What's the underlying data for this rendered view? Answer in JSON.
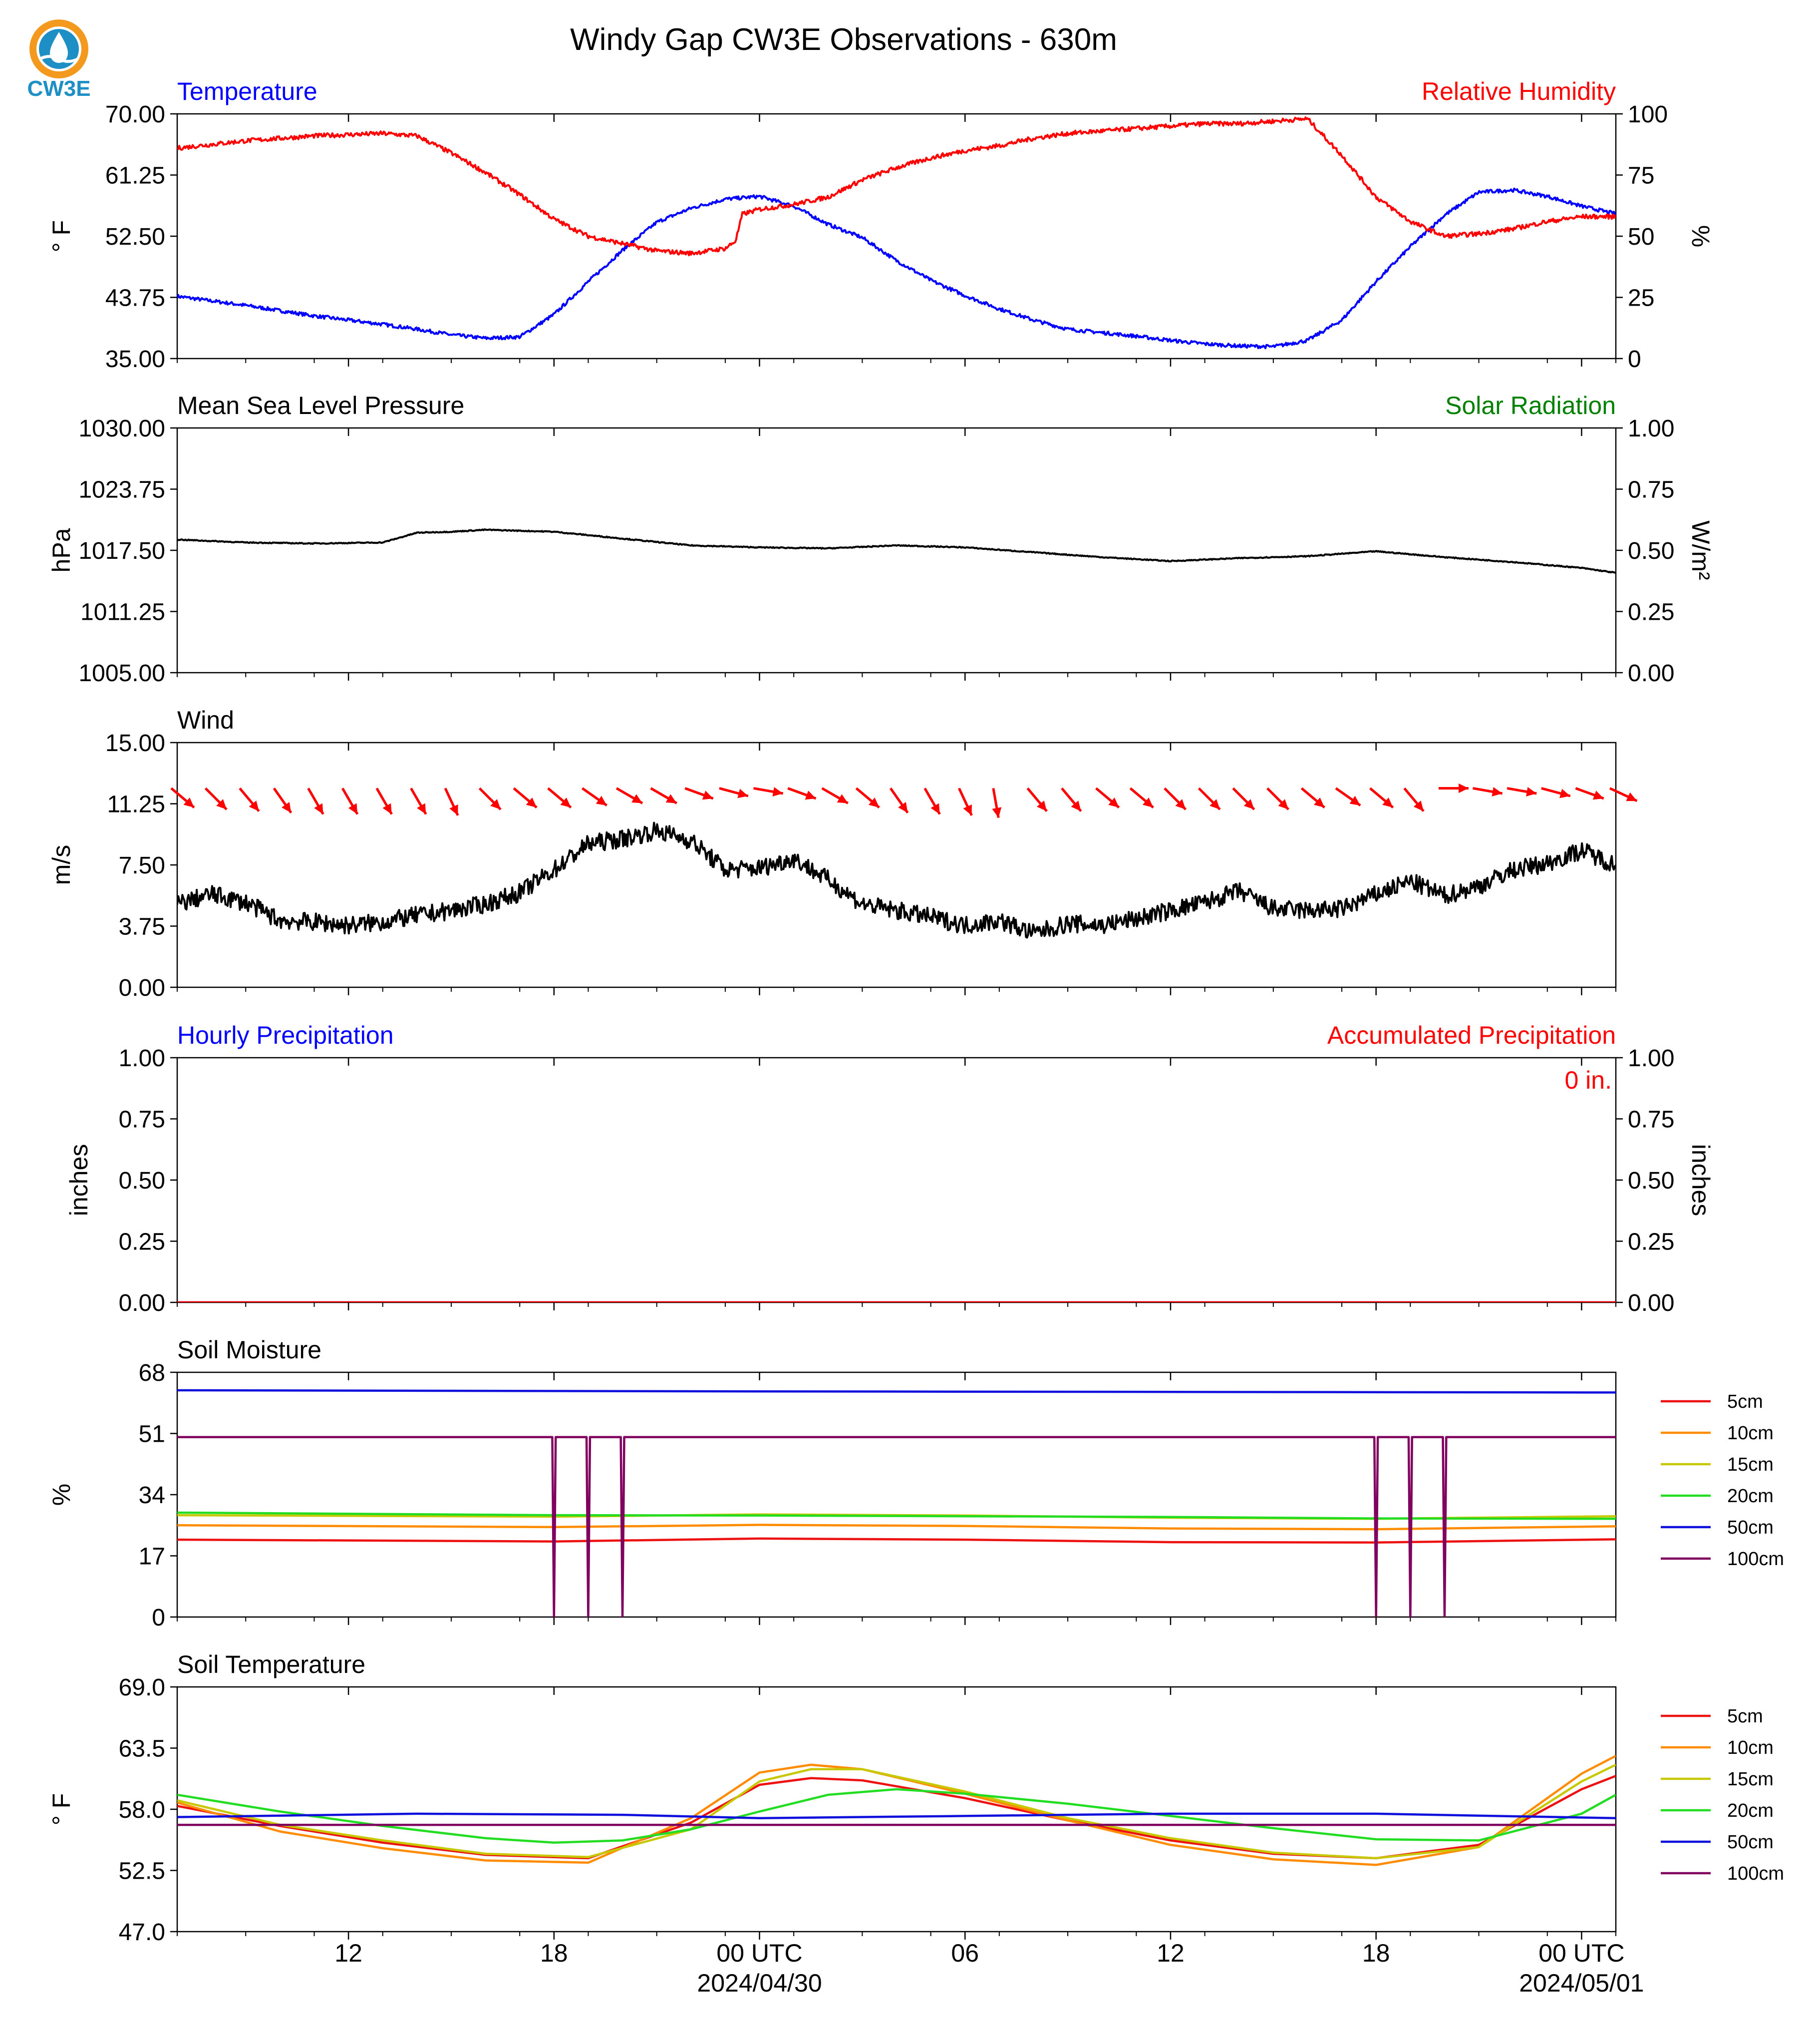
{
  "title": "Windy Gap CW3E Observations - 630m",
  "logo_text": "CW3E",
  "colors": {
    "red": "#ff0000",
    "blue": "#0000ff",
    "green": "#008000",
    "black": "#000000",
    "sm5": "#ee1111",
    "sm10": "#ff8c00",
    "sm15": "#c8c800",
    "sm20": "#22dd22",
    "sm50": "#1010dd",
    "sm100": "#800060"
  },
  "x_axis": {
    "range_hours": [
      -17.0,
      25.0
    ],
    "ticks": [
      {
        "h": -12,
        "label": "12"
      },
      {
        "h": -6,
        "label": "18"
      },
      {
        "h": 0,
        "label": "00 UTC",
        "date": "2024/04/30"
      },
      {
        "h": 6,
        "label": "06"
      },
      {
        "h": 12,
        "label": "12"
      },
      {
        "h": 18,
        "label": "18"
      },
      {
        "h": 24,
        "label": "00 UTC",
        "date": "2024/05/01"
      }
    ],
    "minor_every_hours": 2
  },
  "chart_data": [
    {
      "id": "temperature",
      "type": "line",
      "title_left": "Temperature",
      "title_right": "Relative Humidity",
      "ylabel": "° F",
      "ylabel_right": "%",
      "ylim": [
        35,
        70
      ],
      "yticks": [
        "70.00",
        "61.25",
        "52.50",
        "43.75",
        "35.00"
      ],
      "ylim_right": [
        0,
        100
      ],
      "yticks_right": [
        "100",
        "75",
        "50",
        "25",
        "0"
      ],
      "series": [
        {
          "name": "Temperature",
          "color": "#0000ff",
          "axis": "left",
          "x": [
            -17,
            -15,
            -13,
            -11,
            -10,
            -9,
            -8,
            -7,
            -6,
            -5,
            -4,
            -3,
            -2,
            -1,
            0,
            1,
            2,
            3,
            4,
            5,
            6,
            7,
            8,
            9,
            10,
            11,
            12,
            13,
            14,
            15,
            16,
            17,
            18,
            19,
            20,
            21,
            22,
            23,
            24,
            25
          ],
          "y": [
            43.9,
            42.6,
            41.1,
            39.9,
            39.2,
            38.4,
            37.9,
            38.1,
            41.3,
            46.0,
            50.5,
            54.5,
            56.5,
            57.8,
            58.2,
            56.8,
            54.2,
            52.3,
            49.0,
            46.2,
            44.0,
            42.1,
            40.5,
            39.2,
            38.7,
            38.2,
            37.6,
            37.1,
            36.8,
            36.7,
            37.6,
            40.5,
            46.0,
            51.0,
            55.5,
            58.8,
            59.1,
            58.2,
            56.8,
            55.7
          ]
        },
        {
          "name": "Relative Humidity",
          "color": "#ff0000",
          "axis": "right",
          "x": [
            -17,
            -15,
            -13,
            -11,
            -10,
            -9,
            -8,
            -7,
            -6,
            -5,
            -4,
            -3,
            -2,
            -1,
            -0.7,
            -0.5,
            0,
            1,
            2,
            3,
            4,
            5,
            6,
            7,
            8,
            9,
            10,
            11,
            12,
            13,
            14,
            15,
            16,
            17,
            18,
            19,
            20,
            21,
            22,
            23,
            24,
            25
          ],
          "y": [
            86,
            89,
            91,
            92,
            91,
            84,
            76,
            67,
            57,
            50,
            47,
            44,
            43,
            45,
            48,
            59,
            61,
            63,
            66,
            73,
            78,
            82,
            85,
            87,
            90,
            92,
            93,
            94,
            95,
            96,
            96,
            97,
            98,
            83,
            66,
            56,
            50,
            51,
            53,
            56,
            58,
            58
          ]
        }
      ]
    },
    {
      "id": "pressure",
      "type": "line",
      "title_left": "Mean Sea Level Pressure",
      "title_right": "Solar Radiation",
      "ylabel": "hPa",
      "ylabel_right": "W/m²",
      "ylim": [
        1005,
        1030
      ],
      "yticks": [
        "1030.00",
        "1023.75",
        "1017.50",
        "1011.25",
        "1005.00"
      ],
      "ylim_right": [
        0,
        1
      ],
      "yticks_right": [
        "1.00",
        "0.75",
        "0.50",
        "0.25",
        "0.00"
      ],
      "series": [
        {
          "name": "Mean Sea Level Pressure",
          "color": "#000000",
          "axis": "left",
          "x": [
            -17,
            -15,
            -13,
            -11,
            -10,
            -9,
            -8,
            -7,
            -6,
            -4,
            -2,
            0,
            2,
            4,
            6,
            8,
            10,
            12,
            14,
            16,
            18,
            20,
            22,
            24,
            25
          ],
          "y": [
            1018.6,
            1018.3,
            1018.2,
            1018.3,
            1019.3,
            1019.4,
            1019.6,
            1019.5,
            1019.4,
            1018.7,
            1018.0,
            1017.8,
            1017.7,
            1018.0,
            1017.8,
            1017.3,
            1016.8,
            1016.4,
            1016.7,
            1016.9,
            1017.4,
            1016.8,
            1016.3,
            1015.7,
            1015.2
          ]
        }
      ]
    },
    {
      "id": "wind",
      "type": "line",
      "title_left": "Wind",
      "ylabel": "m/s",
      "ylim": [
        0,
        15
      ],
      "yticks": [
        "15.00",
        "11.25",
        "7.50",
        "3.75",
        "0.00"
      ],
      "series": [
        {
          "name": "Wind",
          "color": "#000000",
          "axis": "left",
          "x": [
            -17,
            -16,
            -15,
            -14,
            -13,
            -12,
            -11,
            -10,
            -9,
            -8,
            -7,
            -6,
            -5,
            -4,
            -3,
            -2,
            -1,
            0,
            1,
            2,
            3,
            4,
            5,
            6,
            7,
            8,
            9,
            10,
            11,
            12,
            13,
            14,
            15,
            16,
            17,
            18,
            19,
            20,
            21,
            22,
            23,
            24,
            25
          ],
          "y": [
            5.1,
            5.7,
            5.2,
            4.1,
            4.0,
            3.8,
            4.0,
            4.4,
            4.7,
            5.1,
            5.8,
            7.2,
            8.8,
            9.1,
            9.6,
            9.0,
            7.2,
            7.3,
            7.9,
            6.6,
            5.1,
            4.7,
            4.3,
            3.8,
            4.1,
            3.3,
            3.9,
            3.8,
            4.2,
            4.7,
            5.2,
            5.9,
            4.8,
            4.7,
            4.8,
            5.7,
            6.5,
            5.6,
            6.2,
            7.2,
            7.6,
            8.4,
            7.5
          ]
        }
      ],
      "barbs": {
        "color": "#ff0000",
        "x": [
          -17,
          -16,
          -15,
          -14,
          -13,
          -12,
          -11,
          -10,
          -9,
          -8,
          -7,
          -6,
          -5,
          -4,
          -3,
          -2,
          -1,
          0,
          1,
          2,
          3,
          4,
          5,
          6,
          7,
          8,
          9,
          10,
          11,
          12,
          13,
          14,
          15,
          16,
          17,
          18,
          19,
          20,
          21,
          22,
          23,
          24,
          25
        ],
        "dir_deg": [
          -40,
          -45,
          -50,
          -55,
          -60,
          -60,
          -60,
          -60,
          -65,
          -45,
          -40,
          -40,
          -35,
          -30,
          -30,
          -20,
          -15,
          -10,
          -20,
          -30,
          -40,
          -55,
          -60,
          -65,
          -80,
          -50,
          -50,
          -40,
          -40,
          -45,
          -45,
          -45,
          -45,
          -40,
          -35,
          -40,
          -50,
          0,
          -10,
          -10,
          -15,
          -20,
          -25
        ],
        "length": [
          1,
          1,
          1,
          1,
          1,
          1,
          1,
          1,
          1,
          1,
          1,
          1,
          1,
          1,
          1,
          1,
          1,
          1,
          1,
          1,
          1,
          1,
          1,
          1,
          1,
          1,
          1,
          1,
          1,
          1,
          1,
          1,
          1,
          1,
          1,
          1,
          1,
          0,
          1,
          1,
          1,
          1,
          1
        ]
      }
    },
    {
      "id": "precip",
      "type": "line",
      "title_left": "Hourly Precipitation",
      "title_right": "Accumulated Precipitation",
      "annotation": "0 in.",
      "ylabel": "inches",
      "ylabel_right": "inches",
      "ylim": [
        0,
        1
      ],
      "yticks": [
        "1.00",
        "0.75",
        "0.50",
        "0.25",
        "0.00"
      ],
      "ylim_right": [
        0,
        1
      ],
      "yticks_right": [
        "1.00",
        "0.75",
        "0.50",
        "0.25",
        "0.00"
      ],
      "series": [
        {
          "name": "Hourly Precipitation",
          "color": "#0000ff",
          "axis": "left",
          "x": [
            -17,
            25
          ],
          "y": [
            0,
            0
          ]
        },
        {
          "name": "Accumulated Precipitation",
          "color": "#ff0000",
          "axis": "right",
          "x": [
            -17,
            25
          ],
          "y": [
            0,
            0
          ]
        }
      ]
    },
    {
      "id": "soil_moisture",
      "type": "line",
      "title_left": "Soil Moisture",
      "ylabel": "%",
      "ylim": [
        0,
        68
      ],
      "yticks": [
        "68",
        "51",
        "34",
        "17",
        "0"
      ],
      "legend": [
        "5cm",
        "10cm",
        "15cm",
        "20cm",
        "50cm",
        "100cm"
      ],
      "series": [
        {
          "name": "5cm",
          "color": "#ee1111",
          "x": [
            -17,
            -6,
            0,
            6,
            12,
            18,
            25
          ],
          "y": [
            21.5,
            21.0,
            21.8,
            21.5,
            20.8,
            20.7,
            21.6
          ]
        },
        {
          "name": "10cm",
          "color": "#ff8c00",
          "x": [
            -17,
            -6,
            0,
            6,
            12,
            18,
            25
          ],
          "y": [
            25.5,
            25.0,
            25.6,
            25.3,
            24.6,
            24.4,
            25.2
          ]
        },
        {
          "name": "15cm",
          "color": "#c8c800",
          "x": [
            -17,
            -6,
            0,
            6,
            12,
            18,
            25
          ],
          "y": [
            28.3,
            27.9,
            28.5,
            28.2,
            27.6,
            27.3,
            28.0
          ]
        },
        {
          "name": "20cm",
          "color": "#22dd22",
          "x": [
            -17,
            -6,
            0,
            6,
            12,
            18,
            25
          ],
          "y": [
            29.0,
            28.3,
            28.2,
            28.0,
            27.8,
            27.4,
            27.3
          ]
        },
        {
          "name": "50cm",
          "color": "#1010dd",
          "x": [
            -17,
            0,
            25
          ],
          "y": [
            63.0,
            62.7,
            62.4
          ]
        },
        {
          "name": "100cm",
          "color": "#800060",
          "x": [
            -17,
            -6.05,
            -6.0,
            -5.95,
            -5.05,
            -5.0,
            -4.95,
            -4.05,
            -4.0,
            -3.95,
            17.95,
            18.0,
            18.05,
            18.95,
            19.0,
            19.05,
            19.95,
            20.0,
            20.05,
            25
          ],
          "y": [
            50,
            50,
            0,
            50,
            50,
            0,
            50,
            50,
            0,
            50,
            50,
            0,
            50,
            50,
            0,
            50,
            50,
            0,
            50,
            50
          ]
        }
      ]
    },
    {
      "id": "soil_temperature",
      "type": "line",
      "title_left": "Soil Temperature",
      "ylabel": "° F",
      "ylim": [
        47,
        69
      ],
      "yticks": [
        "69.0",
        "63.5",
        "58.0",
        "52.5",
        "47.0"
      ],
      "legend": [
        "5cm",
        "10cm",
        "15cm",
        "20cm",
        "50cm",
        "100cm"
      ],
      "series": [
        {
          "name": "5cm",
          "color": "#ee1111",
          "x": [
            -17,
            -14,
            -11,
            -8,
            -5,
            -2,
            0,
            1.5,
            3,
            6,
            9,
            12,
            15,
            18,
            21,
            24,
            25
          ],
          "y": [
            58.3,
            56.5,
            55.0,
            53.9,
            53.6,
            56.8,
            60.2,
            60.8,
            60.6,
            59.0,
            57.0,
            55.2,
            54.0,
            53.6,
            54.8,
            59.8,
            61.0
          ]
        },
        {
          "name": "10cm",
          "color": "#ff8c00",
          "x": [
            -17,
            -14,
            -11,
            -8,
            -5,
            -2,
            0,
            1.5,
            3,
            6,
            9,
            12,
            15,
            18,
            21,
            24,
            25
          ],
          "y": [
            58.6,
            56.0,
            54.5,
            53.4,
            53.2,
            57.2,
            61.3,
            62.0,
            61.6,
            59.4,
            57.0,
            54.8,
            53.5,
            53.0,
            54.6,
            61.2,
            62.8
          ]
        },
        {
          "name": "15cm",
          "color": "#c8c800",
          "x": [
            -17,
            -14,
            -11,
            -8,
            -5,
            -2,
            0,
            1.5,
            3,
            6,
            9,
            12,
            15,
            18,
            21,
            24,
            25
          ],
          "y": [
            58.8,
            56.6,
            55.2,
            54.0,
            53.7,
            56.2,
            60.5,
            61.6,
            61.6,
            59.6,
            57.2,
            55.4,
            54.1,
            53.6,
            54.6,
            60.5,
            62.0
          ]
        },
        {
          "name": "20cm",
          "color": "#22dd22",
          "x": [
            -17,
            -14,
            -11,
            -8,
            -6,
            -4,
            -2,
            0,
            2,
            4,
            6,
            9,
            12,
            15,
            18,
            21,
            24,
            25
          ],
          "y": [
            59.3,
            57.8,
            56.5,
            55.4,
            55.0,
            55.2,
            56.2,
            57.8,
            59.3,
            59.8,
            59.4,
            58.5,
            57.4,
            56.3,
            55.3,
            55.2,
            57.6,
            59.3
          ]
        },
        {
          "name": "50cm",
          "color": "#1010dd",
          "x": [
            -17,
            -10,
            -4,
            0,
            6,
            12,
            18,
            25
          ],
          "y": [
            57.3,
            57.6,
            57.5,
            57.2,
            57.4,
            57.6,
            57.6,
            57.2
          ]
        },
        {
          "name": "100cm",
          "color": "#800060",
          "x": [
            -17,
            0,
            25
          ],
          "y": [
            56.6,
            56.6,
            56.6
          ]
        }
      ]
    }
  ]
}
